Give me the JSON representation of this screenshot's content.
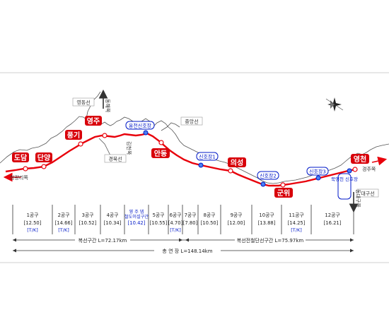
{
  "stations_major": [
    "도담",
    "단양",
    "풍기",
    "영주",
    "안동",
    "의성",
    "군위",
    "영천"
  ],
  "stations_signal": [
    "옹천신호장",
    "신호장1",
    "신호장2",
    "신호장3",
    "북영천 신호장"
  ],
  "lines": {
    "yeongdong": "영동선",
    "gyeongbuk": "경북선",
    "jungang": "중앙선",
    "daegu": "대구선"
  },
  "directions": {
    "cheongnyangni": "청량리쪽",
    "donghae": "동해쪽",
    "gimcheon": "김천쪽",
    "gyeongju": "경주쪽",
    "donggudaegu": "동대구쪽"
  },
  "sections": [
    {
      "name": "1공구",
      "km": "[12.50]",
      "tk": "[T/K]"
    },
    {
      "name": "2공구",
      "km": "[14.66]",
      "tk": "[T/K]"
    },
    {
      "name": "3공구",
      "km": "[10.52]",
      "tk": ""
    },
    {
      "name": "4공구",
      "km": "[10.34]",
      "tk": ""
    },
    {
      "name": "영 주 뎀 철도이설구간",
      "km": "[10.42]",
      "tk": "",
      "highlight": true
    },
    {
      "name": "5공구",
      "km": "[10.55]",
      "tk": ""
    },
    {
      "name": "6공구",
      "km": "[4.70]",
      "tk": "[T/K]"
    },
    {
      "name": "7공구",
      "km": "[7.80]",
      "tk": ""
    },
    {
      "name": "8공구",
      "km": "[10.50]",
      "tk": ""
    },
    {
      "name": "9공구",
      "km": "[12.00]",
      "tk": ""
    },
    {
      "name": "10공구",
      "km": "[13.88]",
      "tk": ""
    },
    {
      "name": "11공구",
      "km": "[14.25]",
      "tk": "[T/K]"
    },
    {
      "name": "12공구",
      "km": "[16.21]",
      "tk": ""
    }
  ],
  "spans": {
    "double_track": "복선구간 L=72.17km",
    "electrified": "복선전철단선구간 L=75.97km",
    "total": "총 연 장 L=148.14km"
  },
  "colors": {
    "route": "#e8000b",
    "station_box": "#d8000a",
    "signal_text": "#0018c8",
    "terrain": "#555555"
  }
}
